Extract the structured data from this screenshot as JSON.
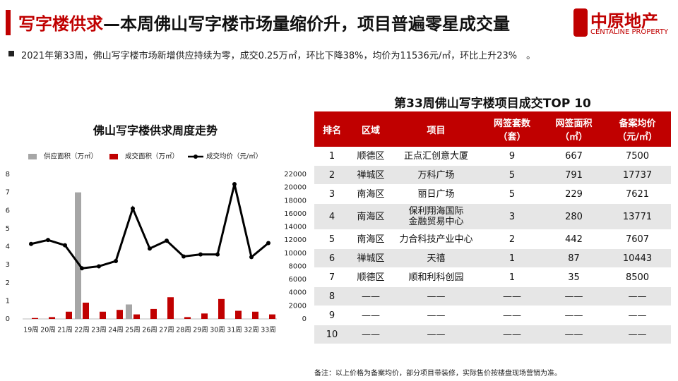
{
  "header": {
    "title_highlight": "写字楼供求",
    "title_rest": "—本周佛山写字楼市场量缩价升，项目普遍零星成交量",
    "logo_cn": "中原地产",
    "logo_en": "CENTALINE PROPERTY"
  },
  "summary": "2021年第33周，佛山写字楼市场新增供应持续为零，成交0.25万㎡，环比下降38%，均价为11536元/㎡，环比上升23%　。",
  "chart_data": {
    "type": "combo",
    "title": "佛山写字楼供求周度走势",
    "categories": [
      "19周",
      "20周",
      "21周",
      "22周",
      "23周",
      "24周",
      "25周",
      "26周",
      "27周",
      "28周",
      "29周",
      "30周",
      "31周",
      "32周",
      "33周"
    ],
    "series": [
      {
        "name": "供应面积（万㎡）",
        "type": "bar",
        "color": "#a6a6a6",
        "values": [
          0,
          0,
          0,
          7.0,
          0,
          0,
          0.8,
          0,
          0,
          0,
          0,
          0,
          0,
          0,
          0
        ]
      },
      {
        "name": "成交面积（万㎡）",
        "type": "bar",
        "color": "#c00000",
        "values": [
          0.05,
          0.1,
          0.4,
          0.9,
          0.4,
          0.5,
          0.25,
          0.55,
          1.2,
          0.1,
          0.3,
          1.1,
          0.45,
          0.4,
          0.25
        ]
      },
      {
        "name": "成交均价（元/㎡）",
        "type": "line",
        "color": "#000000",
        "axis": "y2",
        "values": [
          11400,
          12000,
          11200,
          7700,
          8000,
          8800,
          16800,
          10700,
          11900,
          9500,
          9800,
          9800,
          20500,
          9400,
          11536
        ]
      }
    ],
    "ylim": [
      0,
      8
    ],
    "yticks": [
      0,
      1,
      2,
      3,
      4,
      5,
      6,
      7,
      8
    ],
    "y2lim": [
      0,
      22000
    ],
    "y2ticks": [
      0,
      2000,
      4000,
      6000,
      8000,
      10000,
      12000,
      14000,
      16000,
      18000,
      20000,
      22000
    ],
    "legend": "top"
  },
  "table": {
    "title": "第33周佛山写字楼项目成交TOP 10",
    "columns": [
      "排名",
      "区域",
      "项目",
      "网签套数\n（套）",
      "网签面积\n（㎡）",
      "备案均价\n（元/㎡）"
    ],
    "rows": [
      [
        1,
        "顺德区",
        "正点汇创意大厦",
        9,
        667,
        7500
      ],
      [
        2,
        "禅城区",
        "万科广场",
        5,
        791,
        17737
      ],
      [
        3,
        "南海区",
        "丽日广场",
        5,
        229,
        7621
      ],
      [
        4,
        "南海区",
        "保利翔海国际\n金融贸易中心",
        3,
        280,
        13771
      ],
      [
        5,
        "南海区",
        "力合科技产业中心",
        2,
        442,
        7607
      ],
      [
        6,
        "禅城区",
        "天禧",
        1,
        87,
        10443
      ],
      [
        7,
        "顺德区",
        "顺和利科创园",
        1,
        35,
        8500
      ],
      [
        8,
        "——",
        "——",
        "——",
        "——",
        "——"
      ],
      [
        9,
        "——",
        "——",
        "——",
        "——",
        "——"
      ],
      [
        10,
        "——",
        "——",
        "——",
        "——",
        "——"
      ]
    ]
  },
  "note": "备注：以上价格为备案均价，部分项目带装修，实际售价按楼盘现场营销为准。"
}
